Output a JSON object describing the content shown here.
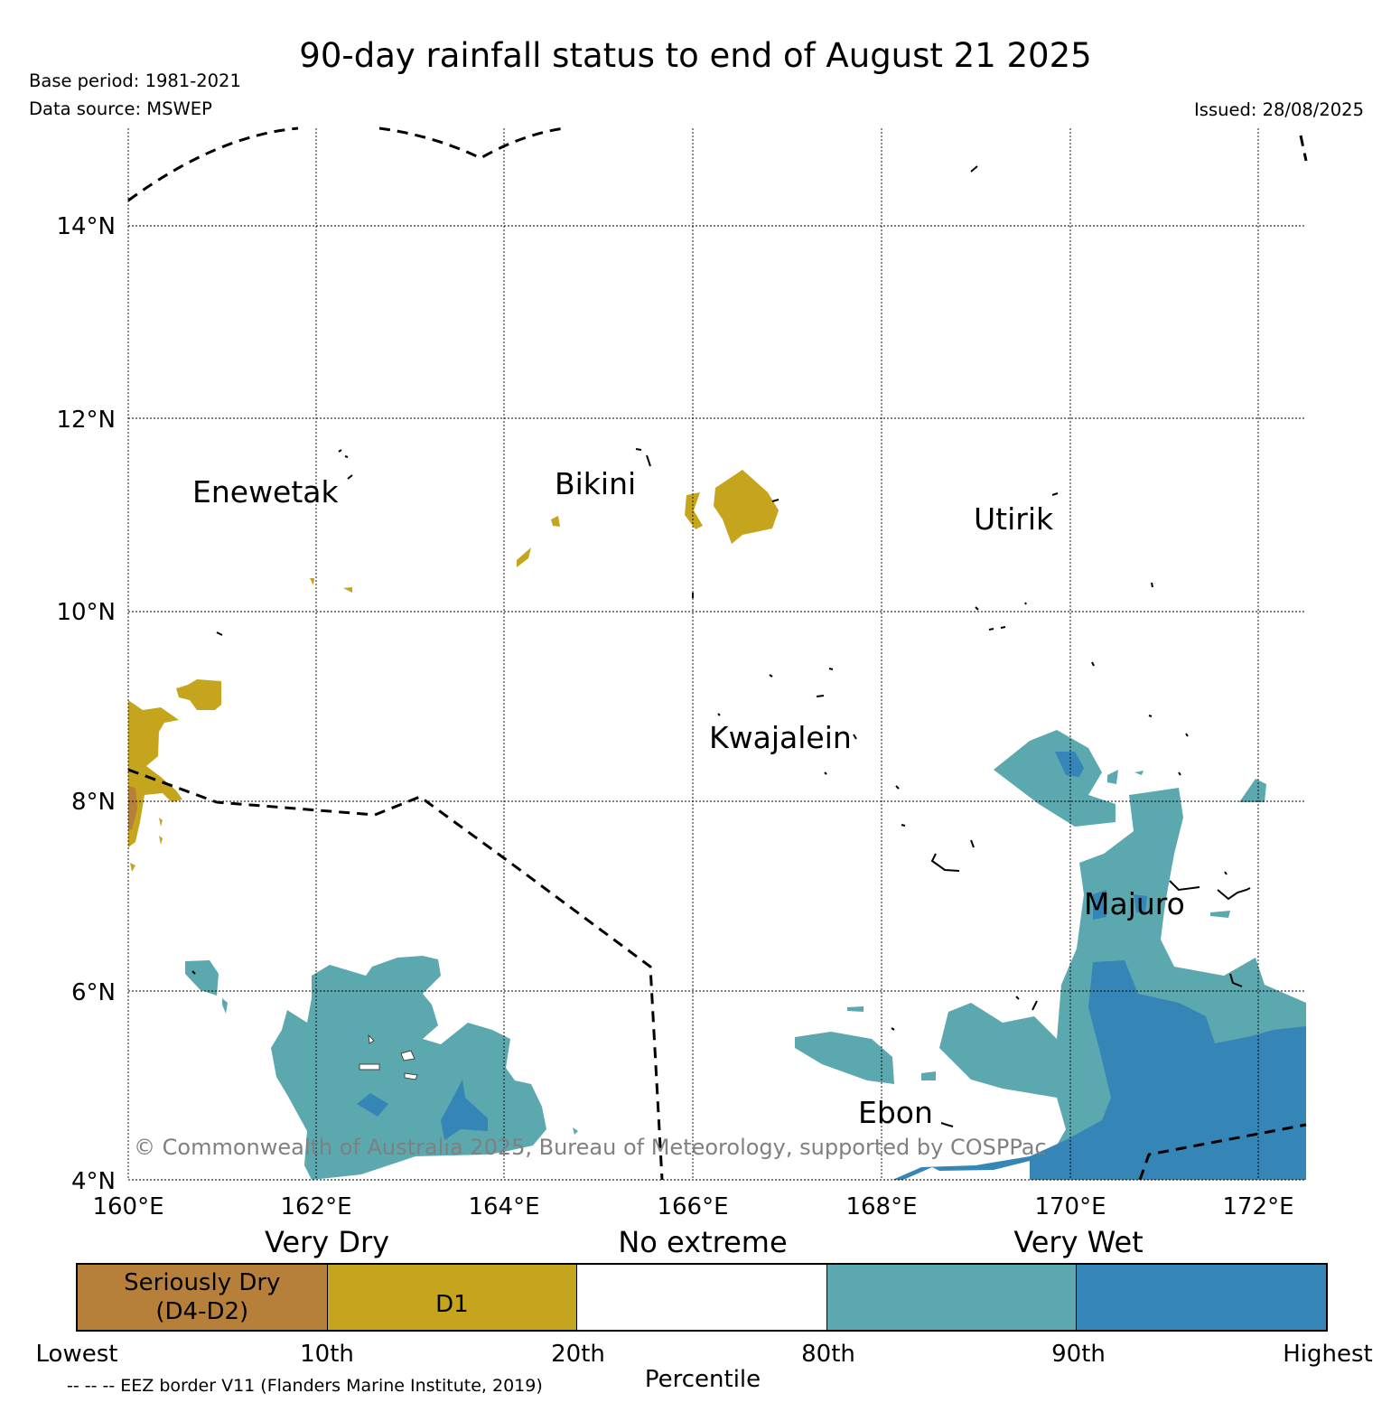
{
  "header": {
    "title": "90-day rainfall status to end of August 21 2025",
    "base_period": "Base period: 1981-2021",
    "data_source": "Data source: MSWEP",
    "issued": "Issued: 28/08/2025"
  },
  "map": {
    "lat_labels": [
      "14°N",
      "12°N",
      "10°N",
      "8°N",
      "6°N",
      "4°N"
    ],
    "lon_labels": [
      "160°E",
      "162°E",
      "164°E",
      "166°E",
      "168°E",
      "170°E",
      "172°E"
    ],
    "places": {
      "enewetak": "Enewetak",
      "bikini": "Bikini",
      "utirik": "Utirik",
      "kwajalein": "Kwajalein",
      "majuro": "Majuro",
      "ebon": "Ebon"
    },
    "copyright": "© Commonwealth of Australia 2025, Bureau of Meteorology, supported by COSPPac",
    "colors": {
      "seriously_dry": "#B7803A",
      "d1": "#C4A51D",
      "very_wet_80_90": "#5BA8AF",
      "very_wet_90_plus": "#3585B6"
    }
  },
  "legend": {
    "categories": {
      "very_dry": "Very Dry",
      "no_extreme": "No extreme",
      "very_wet": "Very Wet"
    },
    "segments": [
      {
        "label_line1": "Seriously Dry",
        "label_line2": "(D4-D2)",
        "color": "#B7803A"
      },
      {
        "label_line1": "D1",
        "label_line2": "",
        "color": "#C4A51D"
      },
      {
        "label_line1": "",
        "label_line2": "",
        "color": "#FFFFFF"
      },
      {
        "label_line1": "",
        "label_line2": "",
        "color": "#5BA8AF"
      },
      {
        "label_line1": "",
        "label_line2": "",
        "color": "#3585B6"
      }
    ],
    "ticks": [
      "Lowest",
      "10th",
      "20th",
      "80th",
      "90th",
      "Highest"
    ],
    "axis_label": "Percentile",
    "eez_note": "-- -- -- EEZ border V11 (Flanders Marine Institute, 2019)"
  }
}
